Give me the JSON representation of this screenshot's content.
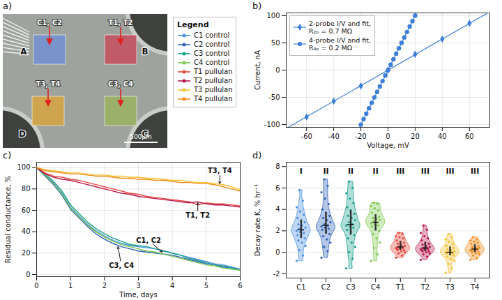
{
  "chart_data": [
    {
      "type": "micrograph",
      "panel_label": "a)",
      "regions": [
        {
          "label": "A",
          "name": "C1, C2",
          "color": "#6f8fd6"
        },
        {
          "label": "B",
          "name": "T1, T2",
          "color": "#c8485a"
        },
        {
          "label": "D",
          "name": "T3, T4",
          "color": "#d9a53a"
        },
        {
          "label": "C",
          "name": "C3, C4",
          "color": "#9ab35a"
        }
      ],
      "scale_bar": "500μm",
      "legend_title": "Legend",
      "legend": "right",
      "series": [
        {
          "name": "C1 control",
          "color": "#4a90e2"
        },
        {
          "name": "C2 control",
          "color": "#2c5fb8"
        },
        {
          "name": "C3 control",
          "color": "#17a08c"
        },
        {
          "name": "C4 control",
          "color": "#7bc94e"
        },
        {
          "name": "T1 pullulan",
          "color": "#e8453c"
        },
        {
          "name": "T2 pullulan",
          "color": "#b5174b"
        },
        {
          "name": "T3 pullulan",
          "color": "#f2c12e"
        },
        {
          "name": "T4 pullulan",
          "color": "#f08c1a"
        }
      ]
    },
    {
      "type": "scatter",
      "panel_label": "b)",
      "xlabel": "Voltage, mV",
      "ylabel": "Current, nA",
      "xlim": [
        -75,
        75
      ],
      "xticks": [
        -60,
        -40,
        -20,
        0,
        20,
        40,
        60
      ],
      "ylim": [
        -105,
        105
      ],
      "yticks": [
        -100,
        -50,
        0,
        50,
        100
      ],
      "grid": true,
      "legend": "upper left",
      "series": [
        {
          "name": "2-probe I/V and fit, R₂ₚ = 0.7 MΩ",
          "color": "#3d7ed8",
          "marker": "diamond",
          "x": [
            -60,
            -40,
            -20,
            0,
            20,
            40,
            60
          ],
          "values": [
            -86,
            -57,
            -29,
            0,
            29,
            57,
            86
          ],
          "fit": {
            "x": [
              -75,
              75
            ],
            "values": [
              -107,
              107
            ]
          }
        },
        {
          "name": "4-probe I/V and fit, R₄ₚ = 0.2 MΩ",
          "color": "#3d7ed8",
          "marker": "circle",
          "x": [
            -20,
            -18,
            -16,
            -14,
            -12,
            -10,
            -8,
            -6,
            -4,
            -2,
            0,
            2,
            4,
            6,
            8,
            10,
            12,
            14,
            16,
            18,
            20
          ],
          "values": [
            -100,
            -90,
            -80,
            -70,
            -60,
            -50,
            -40,
            -30,
            -20,
            -10,
            0,
            10,
            20,
            30,
            40,
            50,
            60,
            70,
            80,
            90,
            100
          ],
          "fit": {
            "x": [
              -21,
              21
            ],
            "values": [
              -105,
              105
            ]
          }
        }
      ]
    },
    {
      "type": "line",
      "panel_label": "c)",
      "xlabel": "Time, days",
      "ylabel": "Residual conductance, %",
      "x": [
        0,
        0.25,
        0.5,
        0.75,
        1,
        1.25,
        1.5,
        1.75,
        2,
        2.25,
        2.5,
        2.75,
        3,
        3.25,
        3.5,
        3.75,
        4,
        4.25,
        4.5,
        4.75,
        5,
        5.25,
        5.5,
        5.75,
        6
      ],
      "xlim": [
        0,
        6
      ],
      "xticks": [
        0,
        1,
        2,
        3,
        4,
        5,
        6
      ],
      "ylim": [
        -2,
        105
      ],
      "yticks": [
        0,
        20,
        40,
        60,
        80,
        100
      ],
      "grid": true,
      "series": [
        {
          "color": "#4a90e2",
          "values": [
            100,
            93,
            86,
            76,
            63,
            55,
            47,
            41,
            36,
            32,
            29,
            27,
            26,
            25,
            24,
            22,
            20,
            18,
            16,
            14,
            12,
            10,
            9,
            7,
            5
          ]
        },
        {
          "color": "#2c5fb8",
          "values": [
            100,
            92,
            84,
            74,
            61,
            53,
            45,
            38,
            33,
            29,
            26,
            24,
            22,
            21,
            20,
            19,
            18,
            16,
            14,
            12,
            10,
            9,
            7,
            6,
            4
          ]
        },
        {
          "color": "#17a08c",
          "values": [
            100,
            94,
            87,
            78,
            65,
            57,
            49,
            43,
            38,
            34,
            31,
            28,
            27,
            26,
            24,
            22,
            20,
            18,
            15,
            13,
            11,
            9,
            8,
            6,
            5
          ]
        },
        {
          "color": "#7bc94e",
          "values": [
            100,
            93,
            85,
            75,
            62,
            54,
            46,
            40,
            35,
            31,
            28,
            26,
            24,
            22,
            21,
            19,
            17,
            15,
            13,
            11,
            9,
            8,
            6,
            5,
            4
          ]
        },
        {
          "color": "#e8453c",
          "values": [
            100,
            95,
            92,
            91,
            89,
            88,
            86,
            84,
            82,
            80,
            78,
            76,
            75,
            73,
            72,
            71,
            70,
            69,
            68,
            65,
            67,
            66,
            66,
            65,
            64
          ]
        },
        {
          "color": "#b5174b",
          "values": [
            100,
            94,
            91,
            89,
            88,
            86,
            84,
            82,
            80,
            78,
            76,
            75,
            73,
            72,
            71,
            70,
            69,
            68,
            67,
            68,
            66,
            65,
            65,
            64,
            63
          ]
        },
        {
          "color": "#f2c12e",
          "values": [
            100,
            98,
            97,
            96,
            95,
            95,
            94,
            93,
            93,
            92,
            92,
            91,
            91,
            90,
            90,
            89,
            88,
            88,
            87,
            86,
            86,
            85,
            84,
            82,
            79
          ]
        },
        {
          "color": "#f08c1a",
          "values": [
            100,
            97,
            96,
            95,
            94,
            94,
            93,
            92,
            92,
            91,
            90,
            90,
            89,
            89,
            88,
            88,
            87,
            86,
            86,
            85,
            85,
            84,
            82,
            80,
            78
          ]
        }
      ],
      "annotations": [
        {
          "text": "C1, C2",
          "x": 3.7,
          "y": 21,
          "text_x": 3.3,
          "text_y": 32
        },
        {
          "text": "C3, C4",
          "x": 2.4,
          "y": 26,
          "text_x": 2.5,
          "text_y": 8
        },
        {
          "text": "T1, T2",
          "x": 4.75,
          "y": 67,
          "text_x": 4.75,
          "text_y": 55
        },
        {
          "text": "T3, T4",
          "x": 5.4,
          "y": 85,
          "text_x": 5.4,
          "text_y": 97
        }
      ]
    },
    {
      "type": "violin",
      "panel_label": "d)",
      "ylabel": "Decay rate K, % hr⁻¹",
      "categories": [
        "C1",
        "C2",
        "C3",
        "C4",
        "T1",
        "T2",
        "T3",
        "T4"
      ],
      "colors": [
        "#4a90e2",
        "#2c5fb8",
        "#17a08c",
        "#7bc94e",
        "#e8453c",
        "#b5174b",
        "#f2c12e",
        "#f08c1a"
      ],
      "groups": [
        "I",
        "II",
        "II",
        "II",
        "III",
        "III",
        "III",
        "III"
      ],
      "ylim": [
        -2.4,
        8.4
      ],
      "yticks": [
        -2,
        0,
        2,
        4,
        6,
        8
      ],
      "grid": true,
      "values": [
        [
          -0.8,
          -0.3,
          0.2,
          0.6,
          0.9,
          1.1,
          1.3,
          1.5,
          1.6,
          1.8,
          1.9,
          2.0,
          2.1,
          2.2,
          2.3,
          2.5,
          2.6,
          2.8,
          3.0,
          3.2,
          3.5,
          3.8,
          4.2,
          4.8,
          5.8
        ],
        [
          -0.5,
          0.1,
          0.5,
          0.9,
          1.2,
          1.5,
          1.7,
          1.9,
          2.1,
          2.2,
          2.3,
          2.4,
          2.5,
          2.6,
          2.8,
          3.0,
          3.2,
          3.4,
          3.7,
          4.0,
          4.5,
          5.0,
          5.6,
          6.2,
          6.8
        ],
        [
          -1.5,
          -0.6,
          0.0,
          0.5,
          0.9,
          1.3,
          1.6,
          1.9,
          2.1,
          2.3,
          2.4,
          2.5,
          2.6,
          2.8,
          3.0,
          3.2,
          3.4,
          3.6,
          3.9,
          4.2,
          4.6,
          5.0,
          5.5,
          6.0,
          6.6
        ],
        [
          -0.8,
          -0.2,
          0.4,
          0.9,
          1.3,
          1.7,
          2.0,
          2.2,
          2.4,
          2.5,
          2.6,
          2.7,
          2.8,
          2.9,
          3.0,
          3.1,
          3.2,
          3.3,
          3.5,
          3.7,
          3.9,
          4.1,
          4.3,
          4.5,
          4.6
        ],
        [
          -0.5,
          -0.3,
          -0.1,
          0.0,
          0.1,
          0.2,
          0.2,
          0.3,
          0.3,
          0.4,
          0.4,
          0.4,
          0.5,
          0.5,
          0.6,
          0.7,
          0.8,
          0.9,
          1.0,
          1.1,
          1.3,
          1.4,
          1.5,
          1.7,
          1.8
        ],
        [
          -0.7,
          -0.4,
          -0.2,
          -0.1,
          0.0,
          0.1,
          0.1,
          0.2,
          0.2,
          0.3,
          0.3,
          0.3,
          0.4,
          0.4,
          0.5,
          0.6,
          0.7,
          0.8,
          0.9,
          1.1,
          1.3,
          1.5,
          1.8,
          2.1,
          2.5
        ],
        [
          -1.9,
          -1.5,
          -1.1,
          -0.8,
          -0.6,
          -0.4,
          -0.3,
          -0.2,
          -0.1,
          -0.1,
          0.0,
          0.0,
          0.0,
          0.1,
          0.1,
          0.2,
          0.3,
          0.4,
          0.5,
          0.6,
          0.8,
          1.0,
          1.2,
          1.4,
          1.7
        ],
        [
          -0.7,
          -0.5,
          -0.3,
          -0.2,
          -0.1,
          0.0,
          0.0,
          0.1,
          0.1,
          0.2,
          0.2,
          0.2,
          0.3,
          0.3,
          0.4,
          0.4,
          0.5,
          0.6,
          0.7,
          0.8,
          0.9,
          1.0,
          1.1,
          1.2,
          1.4
        ]
      ]
    }
  ]
}
